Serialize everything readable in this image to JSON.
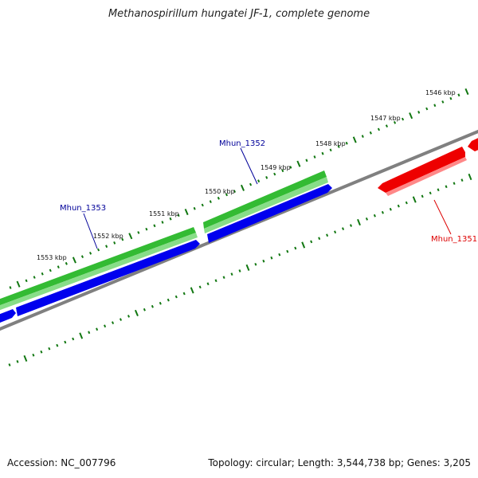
{
  "title": "Methanospirillum hungatei JF-1, complete genome",
  "accession": "Accession: NC_007796",
  "summary": "Topology: circular; Length: 3,544,738 bp; Genes: 3,205",
  "scale_labels": [
    "1546 kbp",
    "1547 kbp",
    "1548 kbp",
    "1549 kbp",
    "1550 kbp",
    "1551 kbp",
    "1552 kbp",
    "1553 kbp"
  ],
  "genes": [
    {
      "label": "Mhun_1351",
      "color": "#dd0000"
    },
    {
      "label": "Mhun_1352",
      "color": "#000099"
    },
    {
      "label": "Mhun_1353",
      "color": "#000099"
    }
  ],
  "colors": {
    "forward_cds": "#0000ee",
    "gene_track": "#33bb33",
    "reverse_cds": "#ee0000",
    "backbone": "#808080",
    "ticks": "#117711"
  }
}
